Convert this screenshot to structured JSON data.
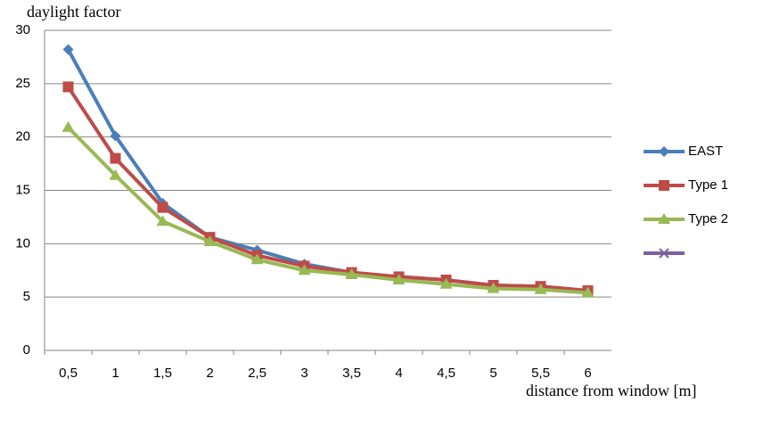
{
  "chart_data": {
    "type": "line",
    "y_label": "daylight factor",
    "x_label": "distance from window [m]",
    "categories": [
      "0,5",
      "1",
      "1,5",
      "2",
      "2,5",
      "3",
      "3,5",
      "4",
      "4,5",
      "5",
      "5,5",
      "6"
    ],
    "series": [
      {
        "name": "EAST",
        "color": "#4a7ebb",
        "marker": "diamond",
        "values": [
          28.2,
          20.1,
          13.8,
          10.6,
          9.4,
          8.1,
          7.3,
          6.9,
          6.6,
          6.1,
          6.0,
          5.6
        ]
      },
      {
        "name": "Type 1",
        "color": "#be4b48",
        "marker": "square",
        "values": [
          24.7,
          18.0,
          13.4,
          10.6,
          8.9,
          7.9,
          7.3,
          6.9,
          6.6,
          6.1,
          6.0,
          5.6
        ]
      },
      {
        "name": "Type 2",
        "color": "#98b954",
        "marker": "triangle",
        "values": [
          20.9,
          16.4,
          12.1,
          10.2,
          8.5,
          7.5,
          7.1,
          6.6,
          6.2,
          5.8,
          5.7,
          5.4
        ]
      },
      {
        "color": "#7d60a0",
        "marker": "x",
        "values": [
          null,
          null,
          null,
          null,
          null,
          null,
          null,
          null,
          null,
          null,
          null,
          null
        ]
      }
    ],
    "ylim": [
      0,
      30
    ],
    "yticks": [
      0,
      5,
      10,
      15,
      20,
      25,
      30
    ],
    "grid": true,
    "legend": "right"
  }
}
